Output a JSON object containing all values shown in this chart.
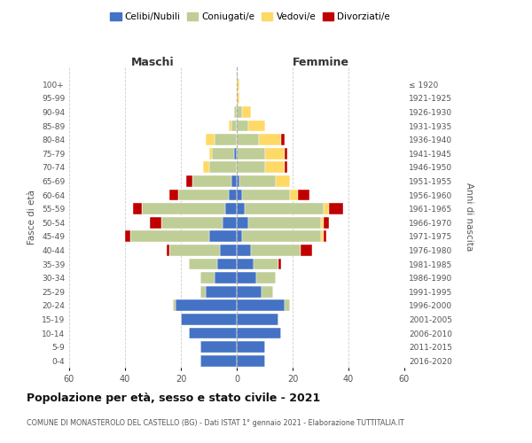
{
  "age_groups": [
    "0-4",
    "5-9",
    "10-14",
    "15-19",
    "20-24",
    "25-29",
    "30-34",
    "35-39",
    "40-44",
    "45-49",
    "50-54",
    "55-59",
    "60-64",
    "65-69",
    "70-74",
    "75-79",
    "80-84",
    "85-89",
    "90-94",
    "95-99",
    "100+"
  ],
  "birth_years": [
    "2016-2020",
    "2011-2015",
    "2006-2010",
    "2001-2005",
    "1996-2000",
    "1991-1995",
    "1986-1990",
    "1981-1985",
    "1976-1980",
    "1971-1975",
    "1966-1970",
    "1961-1965",
    "1956-1960",
    "1951-1955",
    "1946-1950",
    "1941-1945",
    "1936-1940",
    "1931-1935",
    "1926-1930",
    "1921-1925",
    "≤ 1920"
  ],
  "male": {
    "celibi": [
      13,
      13,
      17,
      20,
      22,
      11,
      8,
      7,
      6,
      10,
      5,
      4,
      3,
      2,
      0,
      1,
      0,
      0,
      0,
      0,
      0
    ],
    "coniugati": [
      0,
      0,
      0,
      0,
      1,
      2,
      5,
      10,
      18,
      28,
      22,
      30,
      18,
      14,
      10,
      8,
      8,
      2,
      1,
      0,
      0
    ],
    "vedovi": [
      0,
      0,
      0,
      0,
      0,
      0,
      0,
      0,
      0,
      0,
      0,
      0,
      0,
      0,
      2,
      1,
      3,
      1,
      0,
      0,
      0
    ],
    "divorziati": [
      0,
      0,
      0,
      0,
      0,
      0,
      0,
      0,
      1,
      2,
      4,
      3,
      3,
      2,
      0,
      0,
      0,
      0,
      0,
      0,
      0
    ]
  },
  "female": {
    "nubili": [
      10,
      10,
      16,
      15,
      17,
      9,
      7,
      6,
      5,
      2,
      4,
      3,
      2,
      1,
      0,
      0,
      0,
      0,
      0,
      0,
      0
    ],
    "coniugate": [
      0,
      0,
      0,
      0,
      2,
      4,
      7,
      9,
      18,
      28,
      26,
      28,
      17,
      13,
      10,
      10,
      8,
      4,
      2,
      0,
      0
    ],
    "vedove": [
      0,
      0,
      0,
      0,
      0,
      0,
      0,
      0,
      0,
      1,
      1,
      2,
      3,
      5,
      7,
      7,
      8,
      6,
      3,
      1,
      1
    ],
    "divorziate": [
      0,
      0,
      0,
      0,
      0,
      0,
      0,
      1,
      4,
      1,
      2,
      5,
      4,
      0,
      1,
      1,
      1,
      0,
      0,
      0,
      0
    ]
  },
  "colors": {
    "celibi_nubili": "#4472C4",
    "coniugati": "#BFCD96",
    "vedovi": "#FFD966",
    "divorziati": "#C00000"
  },
  "xlim": 60,
  "title": "Popolazione per età, sesso e stato civile - 2021",
  "subtitle": "COMUNE DI MONASTEROLO DEL CASTELLO (BG) - Dati ISTAT 1° gennaio 2021 - Elaborazione TUTTITALIA.IT",
  "xlabel_left": "Maschi",
  "xlabel_right": "Femmine",
  "ylabel_left": "Fasce di età",
  "ylabel_right": "Anni di nascita",
  "legend_labels": [
    "Celibi/Nubili",
    "Coniugati/e",
    "Vedovi/e",
    "Divorziati/e"
  ]
}
